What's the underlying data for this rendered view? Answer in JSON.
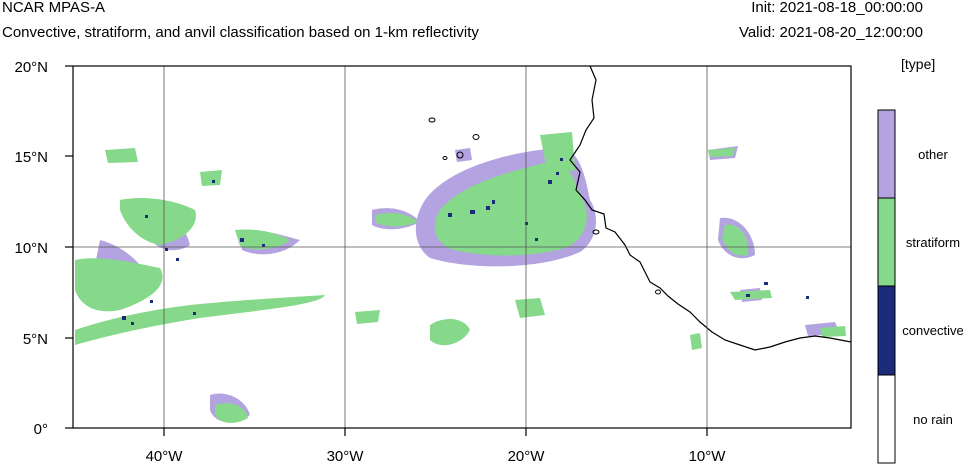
{
  "header": {
    "model": "NCAR MPAS-A",
    "description": "Convective, stratiform, and anvil classification based on 1-km reflectivity",
    "init": "Init: 2021-08-18_00:00:00",
    "valid": "Valid: 2021-08-20_12:00:00"
  },
  "legend": {
    "unit": "[type]",
    "items": [
      {
        "label": "other",
        "color": "#b3a3e0"
      },
      {
        "label": "stratiform",
        "color": "#86d98a"
      },
      {
        "label": "convective",
        "color": "#1c2a7a"
      },
      {
        "label": "no rain",
        "color": "#ffffff"
      }
    ]
  },
  "axes": {
    "x_ticks": [
      "40°W",
      "30°W",
      "20°W",
      "10°W"
    ],
    "y_ticks": [
      "20°N",
      "15°N",
      "10°N",
      "5°N",
      "0°"
    ],
    "lon_range": [
      -45,
      -0.5
    ],
    "lat_range": [
      0,
      20
    ]
  }
}
